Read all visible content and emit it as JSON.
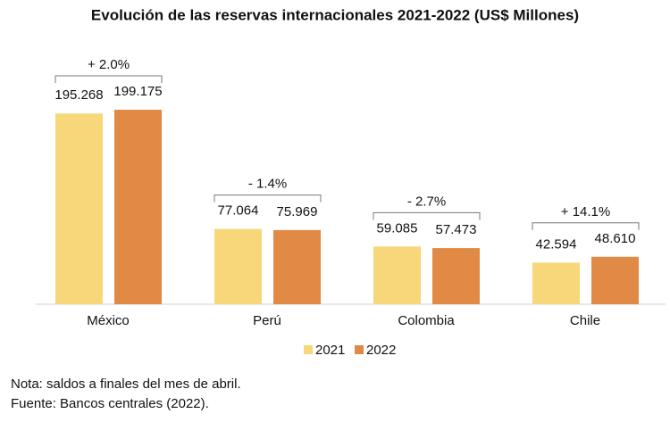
{
  "chart_data": {
    "type": "bar",
    "title": "Evolución de las reservas internacionales 2021-2022 (US$ Millones)",
    "categories": [
      "México",
      "Perú",
      "Colombia",
      "Chile"
    ],
    "series": [
      {
        "name": "2021",
        "color": "#f7d77a",
        "values": [
          195268,
          77064,
          59085,
          42594
        ],
        "value_labels": [
          "195.268",
          "77.064",
          "59.085",
          "42.594"
        ]
      },
      {
        "name": "2022",
        "color": "#e08a45",
        "values": [
          199175,
          75969,
          57473,
          48610
        ],
        "value_labels": [
          "199.175",
          "75.969",
          "57.473",
          "48.610"
        ]
      }
    ],
    "changes": [
      "+ 2.0%",
      "- 1.4%",
      "- 2.7%",
      "+ 14.1%"
    ],
    "notes": [
      "Nota: saldos a finales del mes de abril.",
      "Fuente: Bancos centrales (2022)."
    ]
  }
}
